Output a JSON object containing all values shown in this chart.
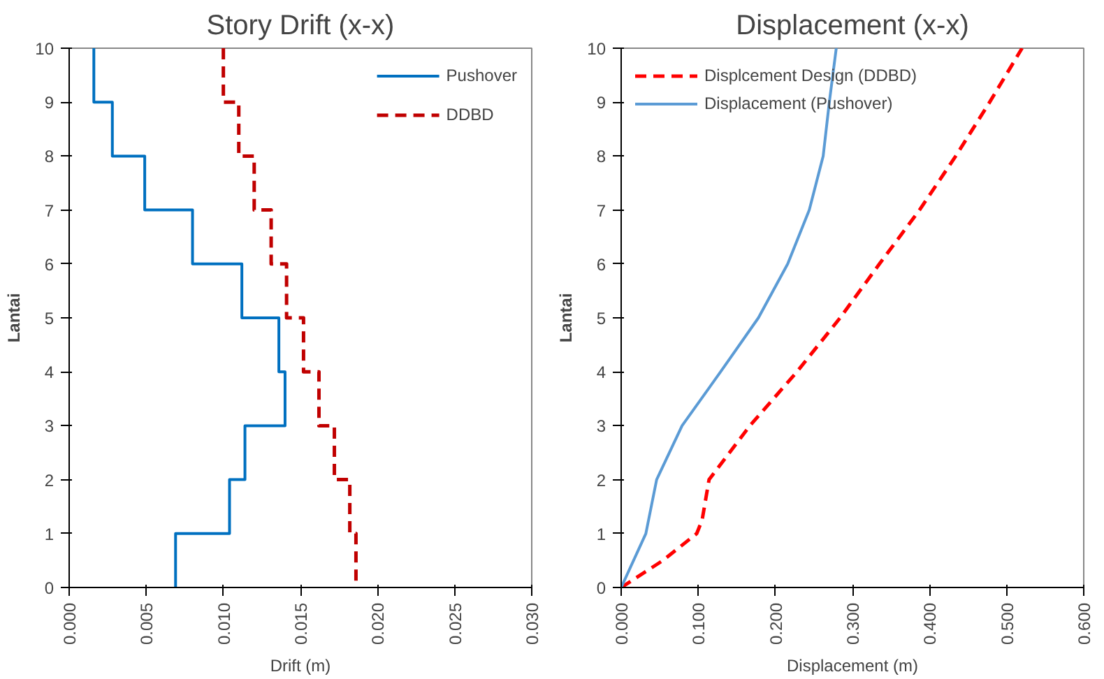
{
  "chart_data": [
    {
      "type": "line",
      "title": "Story Drift (x-x)",
      "xlabel": "Drift (m)",
      "ylabel": "Lantai",
      "xlim": [
        0,
        0.03
      ],
      "ylim": [
        0,
        10
      ],
      "xticks": [
        {
          "value": 0,
          "label": "0.000"
        },
        {
          "value": 0.005,
          "label": "0.005"
        },
        {
          "value": 0.01,
          "label": "0.010"
        },
        {
          "value": 0.015,
          "label": "0.015"
        },
        {
          "value": 0.02,
          "label": "0.020"
        },
        {
          "value": 0.025,
          "label": "0.025"
        },
        {
          "value": 0.03,
          "label": "0.030"
        }
      ],
      "yticks": [
        0,
        1,
        2,
        3,
        4,
        5,
        6,
        7,
        8,
        9,
        10
      ],
      "legend": "top right",
      "grid": false,
      "series": [
        {
          "name": "Pushover",
          "color": "#0070c0",
          "line_style": "solid",
          "x": [
            0.0016,
            0.0016,
            0.0028,
            0.0028,
            0.0049,
            0.0049,
            0.008,
            0.008,
            0.0112,
            0.0112,
            0.0136,
            0.0136,
            0.014,
            0.014,
            0.0114,
            0.0114,
            0.0104,
            0.0104,
            0.0069,
            0.0069
          ],
          "values": [
            10,
            9,
            9,
            8,
            8,
            7,
            7,
            6,
            6,
            5,
            5,
            4,
            4,
            3,
            3,
            2,
            2,
            1,
            1,
            0
          ]
        },
        {
          "name": "DDBD",
          "color": "#c00000",
          "line_style": "dashed",
          "x": [
            0.01,
            0.01,
            0.011,
            0.011,
            0.012,
            0.012,
            0.0131,
            0.0131,
            0.0141,
            0.0141,
            0.0152,
            0.0152,
            0.0162,
            0.0162,
            0.0172,
            0.0172,
            0.0182,
            0.0182,
            0.0186,
            0.0186
          ],
          "values": [
            10,
            9,
            9,
            8,
            8,
            7,
            7,
            6,
            6,
            5,
            5,
            4,
            4,
            3,
            3,
            2,
            2,
            1,
            1,
            0
          ]
        }
      ]
    },
    {
      "type": "line",
      "title": "Displacement (x-x)",
      "xlabel": "Displacement (m)",
      "ylabel": "Lantai",
      "xlim": [
        0,
        0.6
      ],
      "ylim": [
        0,
        10
      ],
      "xticks": [
        {
          "value": 0,
          "label": "0.000"
        },
        {
          "value": 0.1,
          "label": "0.100"
        },
        {
          "value": 0.2,
          "label": "0.200"
        },
        {
          "value": 0.3,
          "label": "0.300"
        },
        {
          "value": 0.4,
          "label": "0.400"
        },
        {
          "value": 0.5,
          "label": "0.500"
        },
        {
          "value": 0.6,
          "label": "0.600"
        }
      ],
      "yticks": [
        0,
        1,
        2,
        3,
        4,
        5,
        6,
        7,
        8,
        9,
        10
      ],
      "legend": "top left",
      "grid": false,
      "series": [
        {
          "name": "Displcement Design (DDBD)",
          "color": "#ff0000",
          "line_style": "dashed",
          "x": [
            0,
            0.054,
            0.098,
            0.105,
            0.114,
            0.167,
            0.228,
            0.284,
            0.335,
            0.387,
            0.434,
            0.478,
            0.52
          ],
          "values": [
            0,
            0.5,
            1,
            1.25,
            2,
            3,
            4,
            5,
            6,
            7,
            8,
            9,
            10
          ]
        },
        {
          "name": "Displacement (Pushover)",
          "color": "#5b9bd5",
          "line_style": "solid",
          "x": [
            0,
            0.032,
            0.046,
            0.079,
            0.129,
            0.178,
            0.216,
            0.244,
            0.262,
            0.27,
            0.279
          ],
          "values": [
            0,
            1,
            2,
            3,
            4,
            5,
            6,
            7,
            8,
            9,
            10
          ]
        }
      ]
    }
  ]
}
